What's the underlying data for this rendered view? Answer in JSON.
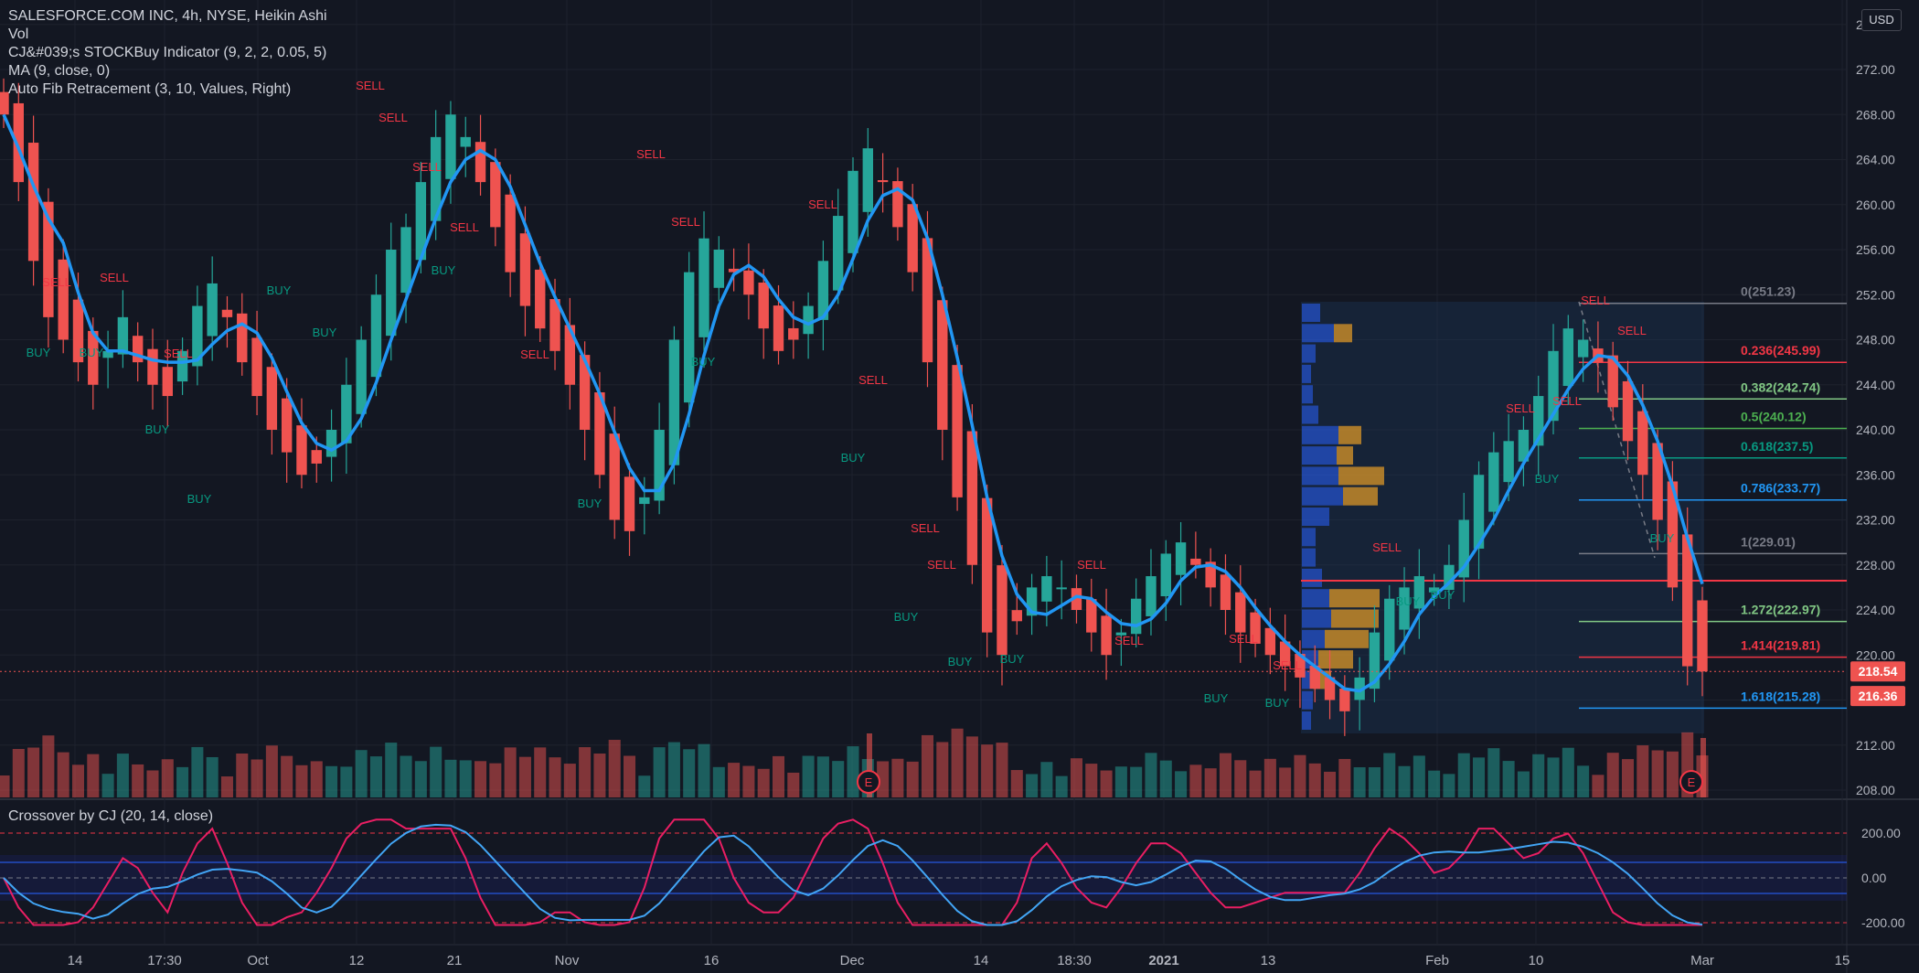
{
  "legend": {
    "symbol": "SALESFORCE.COM INC, 4h, NYSE, Heikin Ashi",
    "vol": "Vol",
    "indicator": "CJ&#039;s STOCKBuy Indicator (9, 2, 2, 0.05, 5)",
    "ma": "MA (9, close, 0)",
    "fib": "Auto Fib Retracement (3, 10, Values, Right)"
  },
  "currency": "USD",
  "price_axis": {
    "ticks": [
      "276.00",
      "272.00",
      "268.00",
      "264.00",
      "260.00",
      "256.00",
      "252.00",
      "248.00",
      "244.00",
      "240.00",
      "236.00",
      "232.00",
      "228.00",
      "224.00",
      "220.00",
      "216.00",
      "212.00",
      "208.00"
    ]
  },
  "price_badges": [
    {
      "label": "218.54",
      "color": "#ef5350"
    },
    {
      "label": "216.36",
      "color": "#ef5350"
    }
  ],
  "fib_levels": [
    {
      "label": "0(251.23)",
      "value": 251.23,
      "color": "#787b86"
    },
    {
      "label": "0.236(245.99)",
      "value": 245.99,
      "color": "#f23645"
    },
    {
      "label": "0.382(242.74)",
      "value": 242.74,
      "color": "#81c784"
    },
    {
      "label": "0.5(240.12)",
      "value": 240.12,
      "color": "#4caf50"
    },
    {
      "label": "0.618(237.5)",
      "value": 237.5,
      "color": "#089981"
    },
    {
      "label": "0.786(233.77)",
      "value": 233.77,
      "color": "#2196f3"
    },
    {
      "label": "1(229.01)",
      "value": 229.01,
      "color": "#787b86"
    },
    {
      "label": "1.272(222.97)",
      "value": 222.97,
      "color": "#81c784"
    },
    {
      "label": "1.414(219.81)",
      "value": 219.81,
      "color": "#f23645"
    },
    {
      "label": "1.618(215.28)",
      "value": 215.28,
      "color": "#2196f3"
    }
  ],
  "signals": {
    "sell": "SELL",
    "buy": "BUY",
    "earnings": "E"
  },
  "oscillator": {
    "title": "Crossover by CJ (20, 14, close)",
    "ticks": [
      "200.00",
      "0.00",
      "-200.00"
    ]
  },
  "time_axis": {
    "labels": [
      "14",
      "17:30",
      "Oct",
      "12",
      "21",
      "Nov",
      "16",
      "Dec",
      "14",
      "18:30",
      "2021",
      "13",
      "Feb",
      "10",
      "Mar",
      "15"
    ]
  },
  "chart_data": {
    "type": "candlestick",
    "title": "SALESFORCE.COM INC, 4h, NYSE, Heikin Ashi",
    "ylim": [
      207,
      277
    ],
    "candles_close": [
      268,
      262,
      255,
      250,
      248,
      246,
      244,
      247,
      250,
      246,
      244,
      243,
      247,
      251,
      253,
      250,
      246,
      243,
      240,
      238,
      236,
      237,
      240,
      244,
      248,
      252,
      256,
      258,
      262,
      266,
      268,
      266,
      262,
      258,
      254,
      251,
      249,
      247,
      244,
      240,
      236,
      232,
      231,
      234,
      240,
      248,
      254,
      257,
      256,
      254,
      252,
      249,
      247,
      248,
      251,
      255,
      259,
      263,
      265,
      262,
      258,
      254,
      246,
      240,
      234,
      228,
      222,
      220,
      223,
      226,
      227,
      226,
      224,
      222,
      220,
      222,
      225,
      227,
      229,
      230,
      228,
      226,
      224,
      222,
      221,
      220,
      219,
      218,
      217,
      216,
      215,
      218,
      222,
      225,
      226,
      227,
      226,
      228,
      232,
      236,
      238,
      239,
      240,
      243,
      247,
      249,
      248,
      246,
      242,
      239,
      236,
      232,
      226,
      219,
      218.54
    ],
    "volume_note": "Volume histogram",
    "last_price": 218.54,
    "prior_level": 216.36
  },
  "colors": {
    "up": "#26a69a",
    "down": "#ef5350",
    "ma": "#2196f3",
    "background": "#131722"
  }
}
